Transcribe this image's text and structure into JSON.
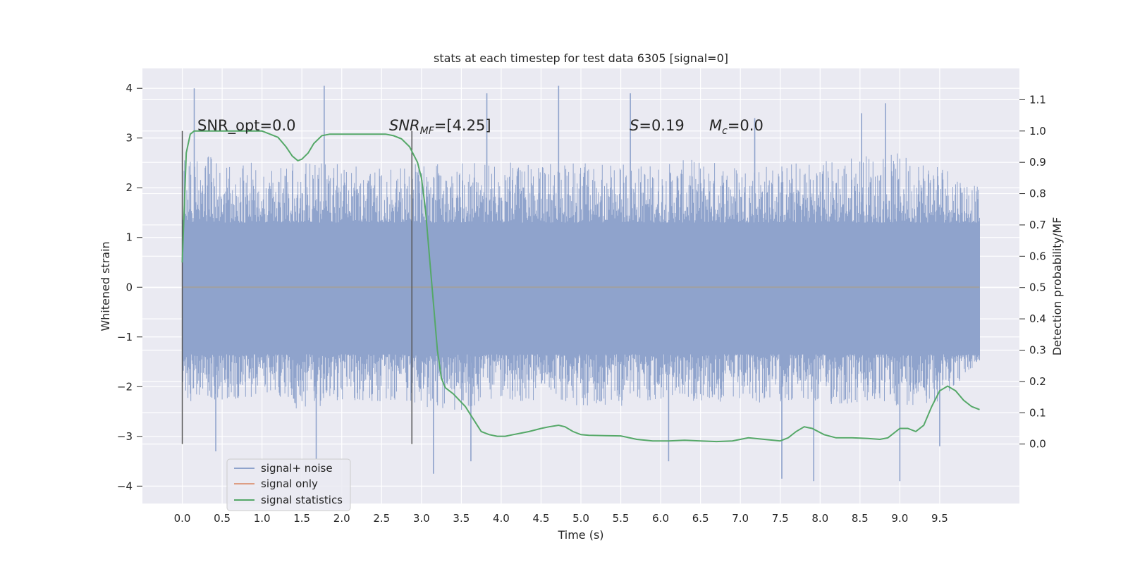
{
  "chart_data": {
    "type": "line",
    "title": "stats at each timestep for test data 6305 [signal=0]",
    "xlabel": "Time (s)",
    "ylabel": "Whitened strain",
    "y2label": "Detection probability/MF",
    "xlim": [
      -0.5,
      10.5
    ],
    "ylim": [
      -4.35,
      4.4
    ],
    "y2lim": [
      -0.19,
      1.2
    ],
    "xticks": [
      "0.0",
      "0.5",
      "1.0",
      "1.5",
      "2.0",
      "2.5",
      "3.0",
      "3.5",
      "4.0",
      "4.5",
      "5.0",
      "5.5",
      "6.0",
      "6.5",
      "7.0",
      "7.5",
      "8.0",
      "8.5",
      "9.0",
      "9.5"
    ],
    "yticks": [
      "4",
      "3",
      "2",
      "1",
      "0",
      "−1",
      "−2",
      "−3",
      "−4"
    ],
    "y2ticks": [
      "1.1",
      "1.0",
      "0.9",
      "0.8",
      "0.7",
      "0.6",
      "0.5",
      "0.4",
      "0.3",
      "0.2",
      "0.1",
      "0.0"
    ],
    "grid": true,
    "legend_position": "lower-left",
    "annotations": {
      "snr_opt": "SNR_opt=0.0",
      "snr_mf_label": "SNR",
      "snr_mf_sub": "MF",
      "snr_mf_value": "=[4.25]",
      "s_label": "S",
      "s_value": "=0.19",
      "mc_label": "M",
      "mc_sub": "c",
      "mc_value": "=0.0"
    },
    "markers_x": [
      0.0,
      2.88
    ],
    "series": [
      {
        "name": "signal+ noise",
        "axis": "left",
        "color": "#8fa3cc",
        "note_band": [
          -1.35,
          1.3
        ],
        "envelope_x": [
          0.0,
          0.5,
          1.0,
          1.5,
          2.0,
          2.5,
          3.0,
          3.5,
          4.0,
          4.5,
          5.0,
          5.5,
          6.0,
          6.5,
          7.0,
          7.5,
          8.0,
          8.5,
          9.0,
          9.5,
          10.0
        ],
        "envelope_max": [
          2.7,
          2.6,
          2.5,
          2.5,
          2.5,
          2.4,
          2.5,
          2.5,
          2.6,
          2.5,
          2.5,
          2.5,
          2.5,
          2.6,
          2.5,
          2.5,
          2.6,
          2.7,
          2.7,
          2.6,
          2.0
        ],
        "envelope_min": [
          -2.3,
          -2.3,
          -2.2,
          -2.5,
          -2.3,
          -2.3,
          -2.4,
          -2.5,
          -2.3,
          -2.3,
          -2.4,
          -2.4,
          -2.3,
          -2.3,
          -2.4,
          -2.3,
          -2.4,
          -2.4,
          -2.4,
          -2.3,
          -1.5
        ],
        "peaks": [
          {
            "x": 0.15,
            "y": 4.0
          },
          {
            "x": 1.78,
            "y": 4.05
          },
          {
            "x": 3.82,
            "y": 3.9
          },
          {
            "x": 4.72,
            "y": 4.05
          },
          {
            "x": 5.62,
            "y": 3.9
          },
          {
            "x": 8.82,
            "y": 3.7
          },
          {
            "x": 8.52,
            "y": 3.5
          },
          {
            "x": 7.18,
            "y": 3.4
          },
          {
            "x": 0.42,
            "y": -3.3
          },
          {
            "x": 1.68,
            "y": -3.45
          },
          {
            "x": 3.15,
            "y": -3.75
          },
          {
            "x": 3.62,
            "y": -3.5
          },
          {
            "x": 6.1,
            "y": -3.5
          },
          {
            "x": 7.52,
            "y": -3.85
          },
          {
            "x": 7.92,
            "y": -3.9
          },
          {
            "x": 9.0,
            "y": -3.9
          },
          {
            "x": 9.5,
            "y": -3.2
          }
        ]
      },
      {
        "name": "signal only",
        "axis": "left",
        "color": "#dd9e84",
        "x": [
          0.0,
          10.0
        ],
        "y": [
          0.0,
          0.0
        ]
      },
      {
        "name": "signal statistics",
        "axis": "right",
        "color": "#55a868",
        "x": [
          0.0,
          0.05,
          0.1,
          0.15,
          0.25,
          0.35,
          0.5,
          0.7,
          0.9,
          1.0,
          1.1,
          1.2,
          1.3,
          1.38,
          1.45,
          1.5,
          1.58,
          1.65,
          1.75,
          1.85,
          2.0,
          2.2,
          2.4,
          2.55,
          2.65,
          2.75,
          2.85,
          2.95,
          3.0,
          3.05,
          3.1,
          3.15,
          3.2,
          3.25,
          3.3,
          3.4,
          3.55,
          3.65,
          3.75,
          3.85,
          3.95,
          4.05,
          4.15,
          4.25,
          4.35,
          4.5,
          4.6,
          4.72,
          4.8,
          4.9,
          5.0,
          5.1,
          5.3,
          5.5,
          5.7,
          5.9,
          6.1,
          6.3,
          6.5,
          6.7,
          6.9,
          7.1,
          7.3,
          7.5,
          7.6,
          7.7,
          7.8,
          7.9,
          8.05,
          8.2,
          8.4,
          8.6,
          8.75,
          8.85,
          9.0,
          9.1,
          9.2,
          9.3,
          9.4,
          9.5,
          9.6,
          9.7,
          9.8,
          9.9,
          10.0
        ],
        "y": [
          0.58,
          0.93,
          0.99,
          1.0,
          1.0,
          1.0,
          1.0,
          1.0,
          1.0,
          1.0,
          0.99,
          0.98,
          0.95,
          0.92,
          0.905,
          0.91,
          0.93,
          0.96,
          0.985,
          0.99,
          0.99,
          0.99,
          0.99,
          0.99,
          0.985,
          0.975,
          0.95,
          0.9,
          0.85,
          0.75,
          0.6,
          0.45,
          0.3,
          0.21,
          0.18,
          0.16,
          0.12,
          0.08,
          0.04,
          0.03,
          0.025,
          0.025,
          0.03,
          0.035,
          0.04,
          0.05,
          0.055,
          0.06,
          0.055,
          0.04,
          0.03,
          0.028,
          0.027,
          0.026,
          0.015,
          0.01,
          0.01,
          0.012,
          0.01,
          0.008,
          0.01,
          0.02,
          0.015,
          0.01,
          0.02,
          0.04,
          0.055,
          0.05,
          0.03,
          0.02,
          0.02,
          0.018,
          0.015,
          0.02,
          0.05,
          0.05,
          0.04,
          0.06,
          0.12,
          0.17,
          0.185,
          0.17,
          0.14,
          0.12,
          0.11
        ]
      }
    ]
  }
}
